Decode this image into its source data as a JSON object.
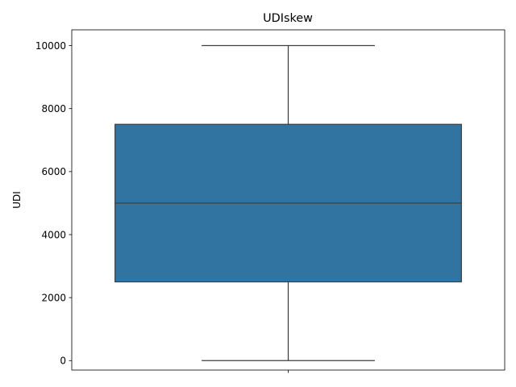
{
  "chart_data": {
    "type": "box",
    "title": "UDIskew",
    "xlabel": "",
    "ylabel": "UDI",
    "ylim": [
      -300,
      10500
    ],
    "yticks": [
      0,
      2000,
      4000,
      6000,
      8000,
      10000
    ],
    "yticklabels": [
      "0",
      "2000",
      "4000",
      "6000",
      "8000",
      "10000"
    ],
    "xticks": [
      ""
    ],
    "grid": false,
    "boxes": [
      {
        "whisker_low": 0,
        "q1": 2500,
        "median": 5000,
        "q3": 7500,
        "whisker_high": 10000
      }
    ],
    "colors": {
      "box_fill": "#3274a1",
      "box_edge": "#3f3f3f"
    }
  }
}
